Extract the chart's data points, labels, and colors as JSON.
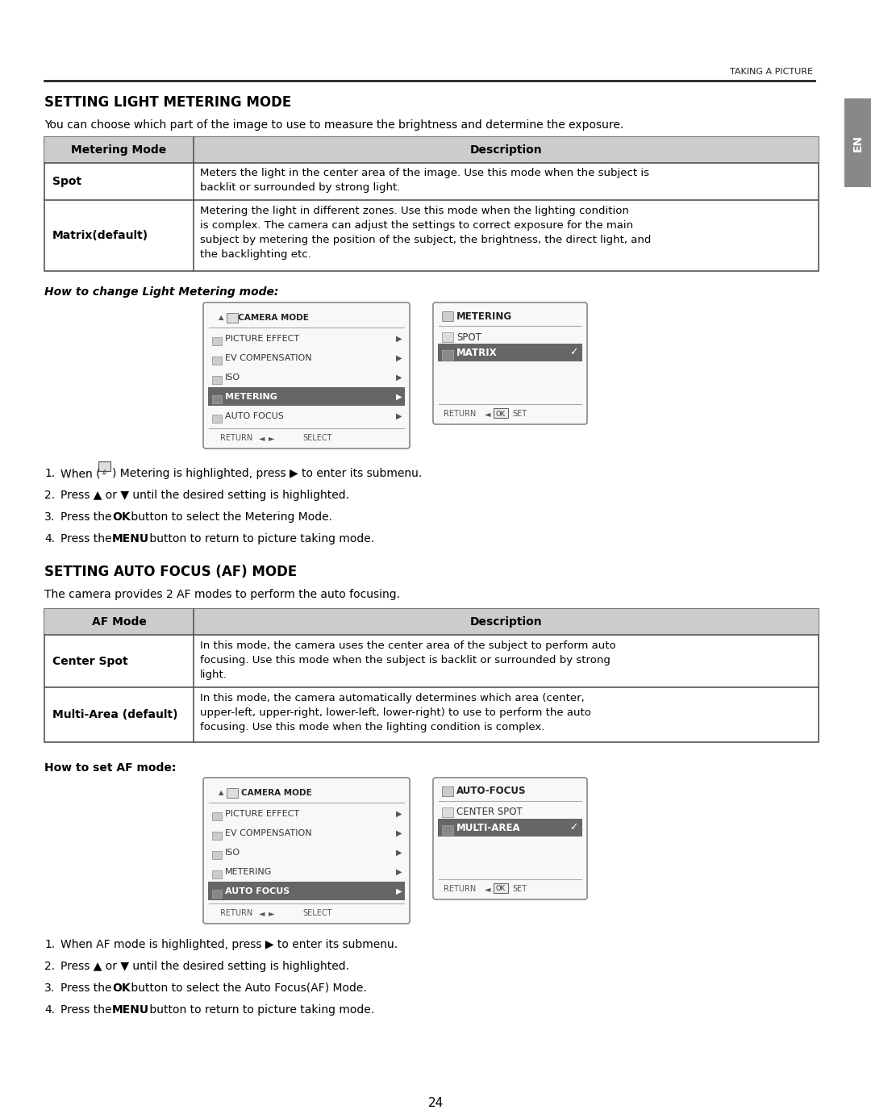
{
  "bg_color": "#ffffff",
  "text_color": "#000000",
  "header_bg": "#cccccc",
  "table_border": "#666666",
  "highlight_bg": "#666666",
  "sidebar_color": "#888888",
  "header_label": "TAKING A PICTURE",
  "section1_title": "SETTING LIGHT METERING MODE",
  "section1_intro": "You can choose which part of the image to use to measure the brightness and determine the exposure.",
  "table1_headers": [
    "Metering Mode",
    "Description"
  ],
  "table1_row1_name": "Spot",
  "table1_row1_desc": "Meters the light in the center area of the image. Use this mode when the subject is\nbacklit or surrounded by strong light.",
  "table1_row2_name": "Matrix(default)",
  "table1_row2_desc": "Metering the light in different zones. Use this mode when the lighting condition\nis complex. The camera can adjust the settings to correct exposure for the main\nsubject by metering the position of the subject, the brightness, the direct light, and\nthe backlighting etc.",
  "how_to_label1": "How to change Light Metering mode:",
  "steps1_0": "When (⋮) Metering is highlighted, press ► to enter its submenu.",
  "steps1_1": "Press ▲ or ▼ until the desired setting is highlighted.",
  "steps1_2a": "Press the ",
  "steps1_2b": "OK",
  "steps1_2c": " button to select the Metering Mode.",
  "steps1_3a": "Press the ",
  "steps1_3b": "MENU",
  "steps1_3c": " button to return to picture taking mode.",
  "section2_title": "SETTING AUTO FOCUS (AF) MODE",
  "section2_intro": "The camera provides 2 AF modes to perform the auto focusing.",
  "table2_headers": [
    "AF Mode",
    "Description"
  ],
  "table2_row1_name": "Center Spot",
  "table2_row1_desc": "In this mode, the camera uses the center area of the subject to perform auto\nfocusing. Use this mode when the subject is backlit or surrounded by strong\nlight.",
  "table2_row2_name": "Multi-Area (default)",
  "table2_row2_desc": "In this mode, the camera automatically determines which area (center,\nupper-left, upper-right, lower-left, lower-right) to use to perform the auto\nfocusing. Use this mode when the lighting condition is complex.",
  "how_to_label2": "How to set AF mode:",
  "steps2_0": "When AF mode is highlighted, press ► to enter its submenu.",
  "steps2_1": "Press ▲ or ▼ until the desired setting is highlighted.",
  "steps2_2a": "Press the ",
  "steps2_2b": "OK",
  "steps2_2c": " button to select the Auto Focus(AF) Mode.",
  "steps2_3a": "Press the ",
  "steps2_3b": "MENU",
  "steps2_3c": " button to return to picture taking mode.",
  "page_number": "24"
}
